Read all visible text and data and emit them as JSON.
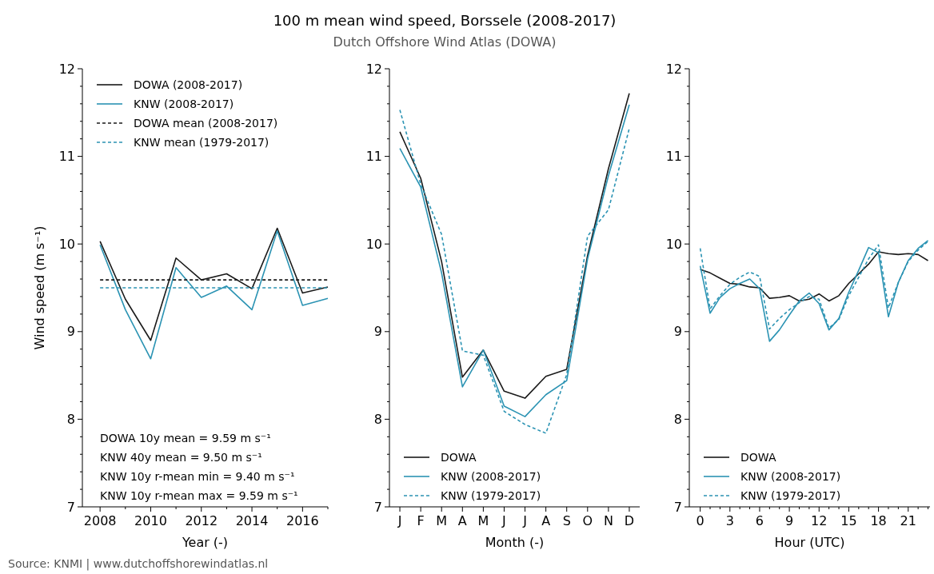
{
  "chart_data": [
    {
      "type": "line",
      "xlabel": "Year (-)",
      "ylabel": "Wind speed (m s⁻¹)",
      "x": [
        2008,
        2009,
        2010,
        2011,
        2012,
        2013,
        2014,
        2015,
        2016,
        2017
      ],
      "xlim": [
        2007.3,
        2017
      ],
      "xticks": [
        2008,
        {
          "value": 2009,
          "label": null
        },
        2010,
        {
          "value": 2011,
          "label": null
        },
        2012,
        {
          "value": 2013,
          "label": null
        },
        2014,
        {
          "value": 2015,
          "label": null
        },
        2016,
        {
          "value": 2017,
          "label": null
        }
      ],
      "ylim": [
        7,
        12
      ],
      "yticks": [
        7,
        {
          "value": 7.2,
          "label": null
        },
        {
          "value": 7.4,
          "label": null
        },
        {
          "value": 7.6,
          "label": null
        },
        {
          "value": 7.8,
          "label": null
        },
        8,
        {
          "value": 8.2,
          "label": null
        },
        {
          "value": 8.4,
          "label": null
        },
        {
          "value": 8.6,
          "label": null
        },
        {
          "value": 8.8,
          "label": null
        },
        9,
        {
          "value": 9.2,
          "label": null
        },
        {
          "value": 9.4,
          "label": null
        },
        {
          "value": 9.6,
          "label": null
        },
        {
          "value": 9.8,
          "label": null
        },
        10,
        {
          "value": 10.2,
          "label": null
        },
        {
          "value": 10.4,
          "label": null
        },
        {
          "value": 10.6,
          "label": null
        },
        {
          "value": 10.8,
          "label": null
        },
        11,
        {
          "value": 11.2,
          "label": null
        },
        {
          "value": 11.4,
          "label": null
        },
        {
          "value": 11.6,
          "label": null
        },
        {
          "value": 11.8,
          "label": null
        },
        12
      ],
      "legend": "top left",
      "marker": "none",
      "series": [
        {
          "name": "DOWA (2008-2017)",
          "color": "#1a1a1a",
          "line_style": "solid",
          "values": [
            10.03,
            9.37,
            8.9,
            9.84,
            9.59,
            9.66,
            9.49,
            10.18,
            9.44,
            9.51
          ]
        },
        {
          "name": "KNW (2008-2017)",
          "color": "#2b93b3",
          "line_style": "solid",
          "values": [
            9.99,
            9.25,
            8.69,
            9.73,
            9.39,
            9.52,
            9.25,
            10.15,
            9.3,
            9.38
          ]
        },
        {
          "name": "DOWA mean (2008-2017)",
          "color": "#1a1a1a",
          "line_style": "dashed",
          "values": [
            9.59,
            9.59,
            9.59,
            9.59,
            9.59,
            9.59,
            9.59,
            9.59,
            9.59,
            9.59
          ]
        },
        {
          "name": "KNW mean (1979-2017)",
          "color": "#2b93b3",
          "line_style": "dashed",
          "values": [
            9.5,
            9.5,
            9.5,
            9.5,
            9.5,
            9.5,
            9.5,
            9.5,
            9.5,
            9.5
          ]
        }
      ],
      "annotations": [
        "DOWA 10y mean =  9.59 m s⁻¹",
        "KNW 40y mean =  9.50 m s⁻¹",
        "KNW 10y r-mean min =  9.40 m s⁻¹",
        "KNW 10y r-mean max =  9.59 m s⁻¹",
        "Source: KNMI | www.dutchoffshorewindatlas.nl"
      ]
    },
    {
      "type": "line",
      "title": "100 m mean wind speed, Borssele (2008-2017)",
      "subtitle": "Dutch Offshore Wind Atlas (DOWA)",
      "xlabel": "Month (-)",
      "categories": [
        "J",
        "F",
        "M",
        "A",
        "M",
        "J",
        "J",
        "A",
        "S",
        "O",
        "N",
        "D"
      ],
      "ylim": [
        7,
        12
      ],
      "yticks": [
        7,
        {
          "value": 7.2,
          "label": null
        },
        {
          "value": 7.4,
          "label": null
        },
        {
          "value": 7.6,
          "label": null
        },
        {
          "value": 7.8,
          "label": null
        },
        8,
        {
          "value": 8.2,
          "label": null
        },
        {
          "value": 8.4,
          "label": null
        },
        {
          "value": 8.6,
          "label": null
        },
        {
          "value": 8.8,
          "label": null
        },
        9,
        {
          "value": 9.2,
          "label": null
        },
        {
          "value": 9.4,
          "label": null
        },
        {
          "value": 9.6,
          "label": null
        },
        {
          "value": 9.8,
          "label": null
        },
        10,
        {
          "value": 10.2,
          "label": null
        },
        {
          "value": 10.4,
          "label": null
        },
        {
          "value": 10.6,
          "label": null
        },
        {
          "value": 10.8,
          "label": null
        },
        11,
        {
          "value": 11.2,
          "label": null
        },
        {
          "value": 11.4,
          "label": null
        },
        {
          "value": 11.6,
          "label": null
        },
        {
          "value": 11.8,
          "label": null
        },
        12
      ],
      "legend": "bottom left",
      "marker": "none",
      "series": [
        {
          "name": "DOWA",
          "color": "#1a1a1a",
          "line_style": "solid",
          "values": [
            11.28,
            10.75,
            9.8,
            8.48,
            8.79,
            8.32,
            8.24,
            8.49,
            8.57,
            9.87,
            10.86,
            11.72
          ]
        },
        {
          "name": "KNW (2008-2017)",
          "color": "#2b93b3",
          "line_style": "solid",
          "values": [
            11.09,
            10.65,
            9.67,
            8.37,
            8.79,
            8.15,
            8.03,
            8.28,
            8.44,
            9.83,
            10.78,
            11.59
          ]
        },
        {
          "name": "KNW (1979-2017)",
          "color": "#2b93b3",
          "line_style": "dashed",
          "values": [
            11.53,
            10.68,
            10.11,
            8.78,
            8.73,
            8.09,
            7.94,
            7.84,
            8.51,
            10.09,
            10.39,
            11.32
          ]
        }
      ]
    },
    {
      "type": "line",
      "xlabel": "Hour (UTC)",
      "x": [
        0,
        1,
        2,
        3,
        4,
        5,
        6,
        7,
        8,
        9,
        10,
        11,
        12,
        13,
        14,
        15,
        16,
        17,
        18,
        19,
        20,
        21,
        22,
        23
      ],
      "xlim": [
        -1.1,
        23.2
      ],
      "xticks": [
        0,
        {
          "value": 1,
          "label": null
        },
        {
          "value": 2,
          "label": null
        },
        3,
        {
          "value": 4,
          "label": null
        },
        {
          "value": 5,
          "label": null
        },
        6,
        {
          "value": 7,
          "label": null
        },
        {
          "value": 8,
          "label": null
        },
        9,
        {
          "value": 10,
          "label": null
        },
        {
          "value": 11,
          "label": null
        },
        12,
        {
          "value": 13,
          "label": null
        },
        {
          "value": 14,
          "label": null
        },
        15,
        {
          "value": 16,
          "label": null
        },
        {
          "value": 17,
          "label": null
        },
        18,
        {
          "value": 19,
          "label": null
        },
        {
          "value": 20,
          "label": null
        },
        21,
        {
          "value": 22,
          "label": null
        },
        {
          "value": 23,
          "label": null
        }
      ],
      "ylim": [
        7,
        12
      ],
      "yticks": [
        7,
        {
          "value": 7.2,
          "label": null
        },
        {
          "value": 7.4,
          "label": null
        },
        {
          "value": 7.6,
          "label": null
        },
        {
          "value": 7.8,
          "label": null
        },
        8,
        {
          "value": 8.2,
          "label": null
        },
        {
          "value": 8.4,
          "label": null
        },
        {
          "value": 8.6,
          "label": null
        },
        {
          "value": 8.8,
          "label": null
        },
        9,
        {
          "value": 9.2,
          "label": null
        },
        {
          "value": 9.4,
          "label": null
        },
        {
          "value": 9.6,
          "label": null
        },
        {
          "value": 9.8,
          "label": null
        },
        10,
        {
          "value": 10.2,
          "label": null
        },
        {
          "value": 10.4,
          "label": null
        },
        {
          "value": 10.6,
          "label": null
        },
        {
          "value": 10.8,
          "label": null
        },
        11,
        {
          "value": 11.2,
          "label": null
        },
        {
          "value": 11.4,
          "label": null
        },
        {
          "value": 11.6,
          "label": null
        },
        {
          "value": 11.8,
          "label": null
        },
        12
      ],
      "legend": "bottom left",
      "marker": "none",
      "series": [
        {
          "name": "DOWA",
          "color": "#1a1a1a",
          "line_style": "solid",
          "values": [
            9.71,
            9.67,
            9.61,
            9.55,
            9.54,
            9.51,
            9.5,
            9.38,
            9.39,
            9.41,
            9.35,
            9.37,
            9.43,
            9.35,
            9.41,
            9.55,
            9.66,
            9.77,
            9.91,
            9.89,
            9.88,
            9.89,
            9.88,
            9.81
          ]
        },
        {
          "name": "KNW (2008-2017)",
          "color": "#2b93b3",
          "line_style": "solid",
          "values": [
            9.75,
            9.21,
            9.39,
            9.49,
            9.55,
            9.6,
            9.49,
            8.89,
            9.02,
            9.19,
            9.35,
            9.44,
            9.32,
            9.02,
            9.15,
            9.45,
            9.7,
            9.96,
            9.9,
            9.17,
            9.56,
            9.81,
            9.95,
            10.04
          ]
        },
        {
          "name": "KNW (1979-2017)",
          "color": "#2b93b3",
          "line_style": "dashed",
          "values": [
            9.95,
            9.26,
            9.41,
            9.54,
            9.62,
            9.68,
            9.63,
            9.03,
            9.15,
            9.25,
            9.33,
            9.4,
            9.37,
            9.04,
            9.14,
            9.41,
            9.62,
            9.83,
            9.99,
            9.27,
            9.56,
            9.8,
            9.93,
            10.03
          ]
        }
      ]
    }
  ]
}
